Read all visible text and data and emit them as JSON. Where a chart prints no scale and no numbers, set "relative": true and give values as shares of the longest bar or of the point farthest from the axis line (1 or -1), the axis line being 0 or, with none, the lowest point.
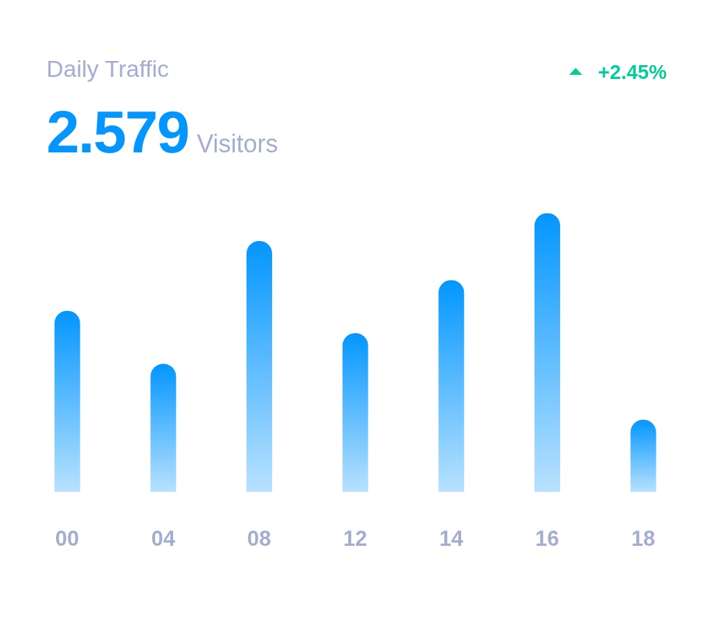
{
  "chart_data": {
    "type": "bar",
    "title": "Daily Traffic",
    "annotations": [
      "2.579",
      "Visitors",
      "+2.45%"
    ],
    "categories": [
      "00",
      "04",
      "08",
      "12",
      "14",
      "16",
      "18"
    ],
    "values": [
      0.65,
      0.46,
      0.9,
      0.57,
      0.76,
      1,
      0.26
    ],
    "color": "#0396ff",
    "relative": true
  }
}
